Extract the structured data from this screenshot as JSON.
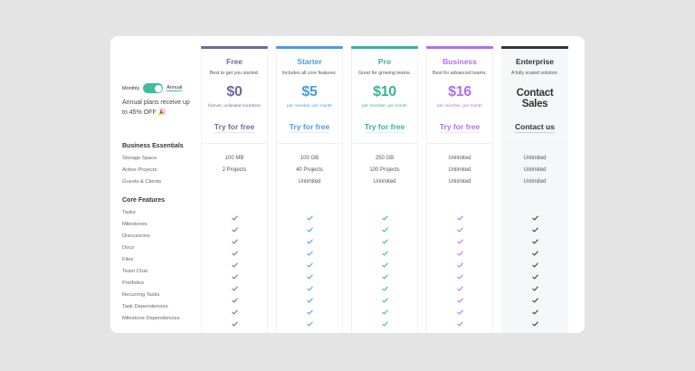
{
  "billing": {
    "monthly_label": "Monthly",
    "annual_label": "Annual",
    "toggle_state": "annual",
    "promo_text": "Annual plans receive up to 45% OFF 🎉"
  },
  "plans": [
    {
      "name": "Free",
      "description": "Best to get you started.",
      "price": "$0",
      "price_note": "forever, unlimited members",
      "cta": "Try for free",
      "color": "#6b6b9e",
      "values": [
        "100 MB",
        "2 Projects",
        ""
      ]
    },
    {
      "name": "Starter",
      "description": "Includes all core features.",
      "price": "$5",
      "price_note": "per member, per month",
      "cta": "Try for free",
      "color": "#4a9be8",
      "values": [
        "100 GB",
        "40 Projects",
        "Unlimited"
      ]
    },
    {
      "name": "Pro",
      "description": "Great for growing teams.",
      "price": "$10",
      "price_note": "per member, per month",
      "cta": "Try for free",
      "color": "#36b39a",
      "values": [
        "250 GB",
        "100 Projects",
        "Unlimited"
      ]
    },
    {
      "name": "Business",
      "description": "Best for advanced teams.",
      "price": "$16",
      "price_note": "per member, per month",
      "cta": "Try for free",
      "color": "#b26ef0",
      "values": [
        "Unlimited",
        "Unlimited",
        "Unlimited"
      ]
    },
    {
      "name": "Enterprise",
      "description": "A fully scaled solution.",
      "price": "Contact Sales",
      "price_note": "",
      "cta": "Contact us",
      "color": "#333333",
      "values": [
        "Unlimited",
        "Unlimited",
        "Unlimited"
      ]
    }
  ],
  "sections": {
    "business_essentials": {
      "title": "Business Essentials",
      "features": [
        "Storage Space",
        "Active Projects",
        "Guests & Clients"
      ]
    },
    "core_features": {
      "title": "Core Features",
      "features": [
        "Tasks",
        "Milestones",
        "Discussions",
        "Docs",
        "Files",
        "Team Chat",
        "Portfolios",
        "Recurring Tasks",
        "Task Dependencies",
        "Milestone Dependencies"
      ],
      "all_plans_included": true
    }
  }
}
